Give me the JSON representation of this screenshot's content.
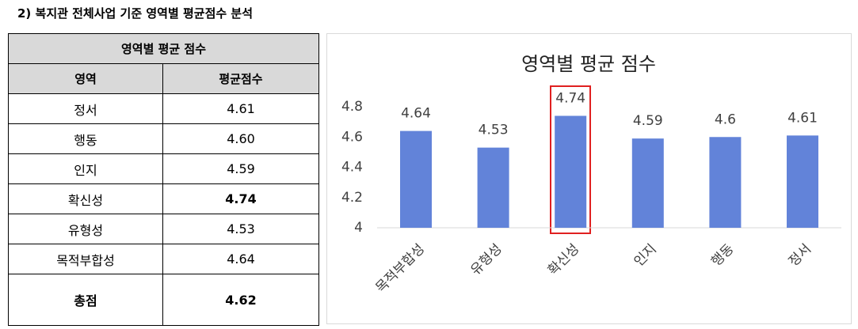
{
  "heading": "2) 복지관 전체사업 기준 영역별 평균점수 분석",
  "table": {
    "title": "영역별 평균 점수",
    "columns": [
      "영역",
      "평균점수"
    ],
    "rows": [
      [
        "정서",
        "4.61"
      ],
      [
        "행동",
        "4.60"
      ],
      [
        "인지",
        "4.59"
      ],
      [
        "확신성",
        "4.74"
      ],
      [
        "유형성",
        "4.53"
      ],
      [
        "목적부합성",
        "4.64"
      ]
    ],
    "total": [
      "총점",
      "4.62"
    ]
  },
  "chart_data": {
    "type": "bar",
    "title": "영역별 평균 점수",
    "categories": [
      "목적부합성",
      "유형성",
      "확신성",
      "인지",
      "행동",
      "정서"
    ],
    "values": [
      4.64,
      4.53,
      4.74,
      4.59,
      4.6,
      4.61
    ],
    "color": "#6283d9",
    "ylim": [
      4,
      4.8
    ],
    "yticks": [
      4,
      4.2,
      4.4,
      4.6,
      4.8
    ],
    "grid": false
  }
}
